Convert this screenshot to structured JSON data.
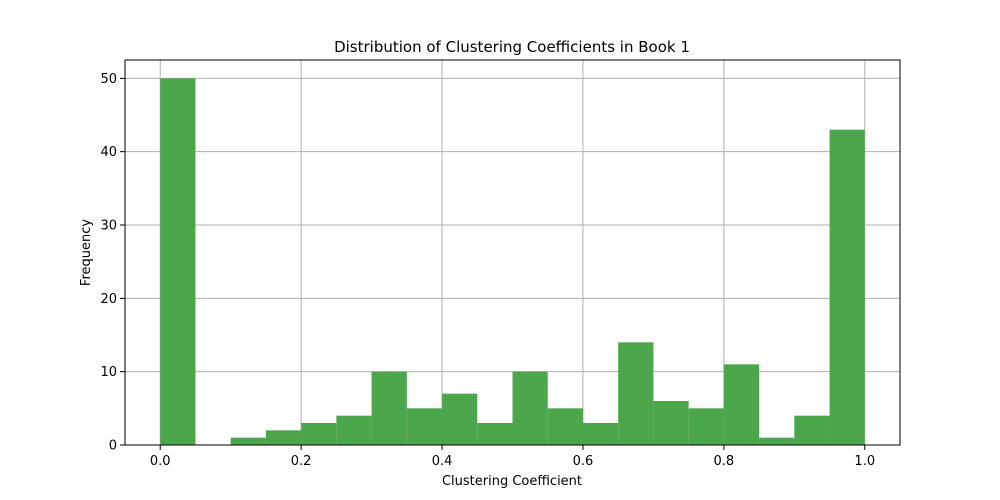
{
  "chart_data": {
    "type": "bar",
    "title": "Distribution of Clustering Coefficients in Book 1",
    "xlabel": "Clustering Coefficient",
    "ylabel": "Frequency",
    "xlim": [
      -0.05,
      1.05
    ],
    "ylim": [
      0,
      52.5
    ],
    "xticks": [
      0.0,
      0.2,
      0.4,
      0.6,
      0.8,
      1.0
    ],
    "xtick_labels": [
      "0.0",
      "0.2",
      "0.4",
      "0.6",
      "0.8",
      "1.0"
    ],
    "yticks": [
      0,
      10,
      20,
      30,
      40,
      50
    ],
    "ytick_labels": [
      "0",
      "10",
      "20",
      "30",
      "40",
      "50"
    ],
    "grid": true,
    "bar_color": "#4ca64c",
    "bin_edges": [
      0.0,
      0.05,
      0.1,
      0.15,
      0.2,
      0.25,
      0.3,
      0.35,
      0.4,
      0.45,
      0.5,
      0.55,
      0.6,
      0.65,
      0.7,
      0.75,
      0.8,
      0.85,
      0.9,
      0.95,
      1.0
    ],
    "values": [
      50,
      0,
      1,
      2,
      3,
      4,
      10,
      5,
      7,
      3,
      10,
      5,
      3,
      14,
      6,
      5,
      11,
      1,
      4,
      43
    ]
  }
}
